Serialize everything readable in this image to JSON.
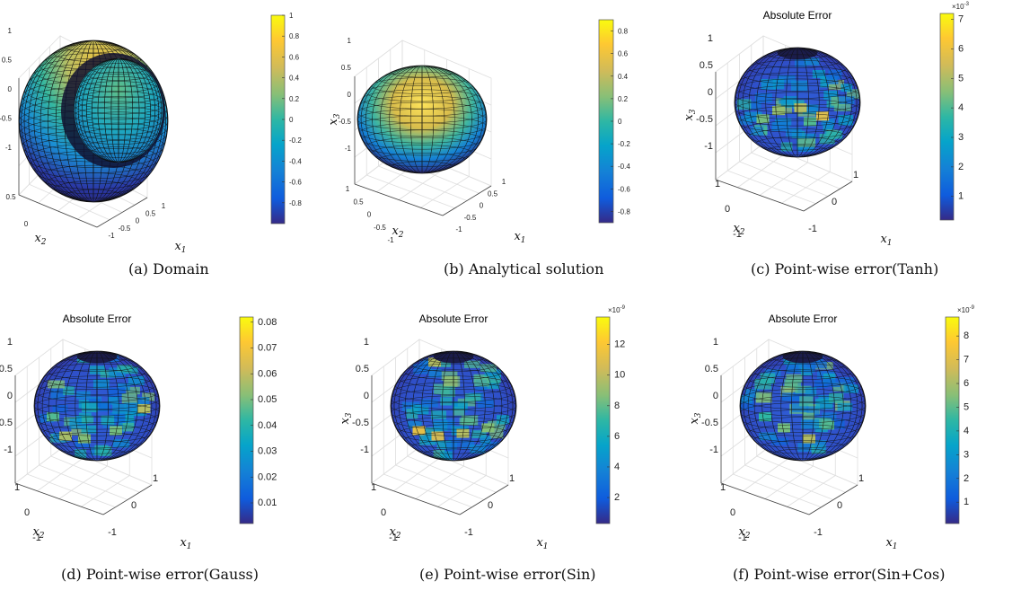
{
  "chart_data": [
    {
      "id": "a",
      "type": "surface3d",
      "caption": "(a)  Domain",
      "title": "",
      "xlabel": "x1",
      "ylabel": "x2",
      "zlabel": "x3",
      "xticks": [
        "-1",
        "-0.5",
        "0",
        "0.5",
        "1"
      ],
      "yticks": [
        "0",
        "0.5"
      ],
      "zticks": [
        "-1",
        "-0.5",
        "0",
        "0.5",
        "1"
      ],
      "colorbar": {
        "min": -1,
        "max": 1,
        "ticks": [
          "-0.8",
          "-0.6",
          "-0.4",
          "-0.2",
          "0",
          "0.2",
          "0.4",
          "0.6",
          "0.8",
          "1"
        ],
        "exponent": ""
      }
    },
    {
      "id": "b",
      "type": "surface3d",
      "caption": "(b)  Analytical solution",
      "title": "",
      "xlabel": "x1",
      "ylabel": "x2",
      "zlabel": "x3",
      "xticks": [
        "-1",
        "-0.5",
        "0",
        "0.5",
        "1"
      ],
      "yticks": [
        "-1",
        "-0.5",
        "0",
        "0.5",
        "1"
      ],
      "zticks": [
        "-1",
        "-0.5",
        "0",
        "0.5",
        "1"
      ],
      "colorbar": {
        "min": -0.9,
        "max": 0.9,
        "ticks": [
          "-0.8",
          "-0.6",
          "-0.4",
          "-0.2",
          "0",
          "0.2",
          "0.4",
          "0.6",
          "0.8"
        ],
        "exponent": ""
      }
    },
    {
      "id": "c",
      "type": "surface3d",
      "caption": "(c)  Point-wise error(Tanh)",
      "title": "Absolute Error",
      "xlabel": "x1",
      "ylabel": "x2",
      "zlabel": "x3",
      "xticks": [
        "-1",
        "0",
        "1"
      ],
      "yticks": [
        "-1",
        "0",
        "1"
      ],
      "zticks": [
        "-1",
        "-0.5",
        "0",
        "0.5",
        "1"
      ],
      "colorbar": {
        "min": 0.2,
        "max": 7.2,
        "ticks": [
          "1",
          "2",
          "3",
          "4",
          "5",
          "6",
          "7"
        ],
        "exponent": "×10-3"
      }
    },
    {
      "id": "d",
      "type": "surface3d",
      "caption": "(d)  Point-wise error(Gauss)",
      "title": "Absolute Error",
      "xlabel": "x1",
      "ylabel": "x2",
      "zlabel": "x3",
      "xticks": [
        "-1",
        "0",
        "1"
      ],
      "yticks": [
        "-1",
        "0",
        "1"
      ],
      "zticks": [
        "-1",
        "-0.5",
        "0",
        "0.5",
        "1"
      ],
      "colorbar": {
        "min": 0.002,
        "max": 0.082,
        "ticks": [
          "0.01",
          "0.02",
          "0.03",
          "0.04",
          "0.05",
          "0.06",
          "0.07",
          "0.08"
        ],
        "exponent": ""
      }
    },
    {
      "id": "e",
      "type": "surface3d",
      "caption": "(e)  Point-wise error(Sin)",
      "title": "Absolute Error",
      "xlabel": "x1",
      "ylabel": "x2",
      "zlabel": "x3",
      "xticks": [
        "-1",
        "0",
        "1"
      ],
      "yticks": [
        "-1",
        "0",
        "1"
      ],
      "zticks": [
        "-1",
        "-0.5",
        "0",
        "0.5",
        "1"
      ],
      "colorbar": {
        "min": 0.3,
        "max": 13.8,
        "ticks": [
          "2",
          "4",
          "6",
          "8",
          "10",
          "12"
        ],
        "exponent": "×10-9"
      }
    },
    {
      "id": "f",
      "type": "surface3d",
      "caption": "(f)  Point-wise error(Sin+Cos)",
      "title": "Absolute Error",
      "xlabel": "x1",
      "ylabel": "x2",
      "zlabel": "x3",
      "xticks": [
        "-1",
        "0",
        "1"
      ],
      "yticks": [
        "-1",
        "0",
        "1"
      ],
      "zticks": [
        "-1",
        "-0.5",
        "0",
        "0.5",
        "1"
      ],
      "colorbar": {
        "min": 0.1,
        "max": 8.8,
        "ticks": [
          "1",
          "2",
          "3",
          "4",
          "5",
          "6",
          "7",
          "8"
        ],
        "exponent": "×10-9"
      }
    }
  ]
}
